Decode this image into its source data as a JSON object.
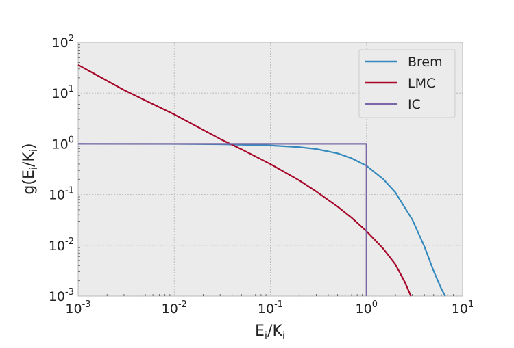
{
  "chart_data": {
    "type": "line",
    "xlabel": "E_i/K_i",
    "ylabel": "g(E_i/K_i)",
    "xscale": "log",
    "yscale": "log",
    "xlim": [
      0.001,
      10
    ],
    "ylim": [
      0.001,
      100
    ],
    "grid": true,
    "legend_position": "top-right",
    "x_ticks": [
      {
        "base": "10",
        "exp": "-3"
      },
      {
        "base": "10",
        "exp": "-2"
      },
      {
        "base": "10",
        "exp": "-1"
      },
      {
        "base": "10",
        "exp": "0"
      },
      {
        "base": "10",
        "exp": "1"
      }
    ],
    "y_ticks": [
      {
        "base": "10",
        "exp": "-3"
      },
      {
        "base": "10",
        "exp": "-2"
      },
      {
        "base": "10",
        "exp": "-1"
      },
      {
        "base": "10",
        "exp": "0"
      },
      {
        "base": "10",
        "exp": "1"
      },
      {
        "base": "10",
        "exp": "2"
      }
    ],
    "series": [
      {
        "name": "Brem",
        "color": "#348abd",
        "x": [
          0.001,
          0.01,
          0.03,
          0.1,
          0.2,
          0.3,
          0.5,
          0.7,
          1.0,
          1.5,
          2.0,
          3.0,
          4.0,
          5.0,
          6.0,
          6.6
        ],
        "y": [
          1.0,
          0.995,
          0.98,
          0.93,
          0.86,
          0.79,
          0.65,
          0.52,
          0.37,
          0.2,
          0.11,
          0.032,
          0.0095,
          0.0031,
          0.0014,
          0.001
        ]
      },
      {
        "name": "LMC",
        "color": "#a60628",
        "x": [
          0.001,
          0.003,
          0.01,
          0.03,
          0.05,
          0.1,
          0.2,
          0.3,
          0.5,
          0.7,
          1.0,
          1.5,
          2.0,
          2.5,
          2.9
        ],
        "y": [
          36,
          11.5,
          3.8,
          1.25,
          0.78,
          0.4,
          0.19,
          0.115,
          0.058,
          0.035,
          0.019,
          0.0085,
          0.0042,
          0.0019,
          0.001
        ]
      },
      {
        "name": "IC",
        "color": "#7a68a6",
        "x": [
          0.001,
          1.0,
          1.0
        ],
        "y": [
          1.0,
          1.0,
          0.001
        ]
      }
    ]
  }
}
